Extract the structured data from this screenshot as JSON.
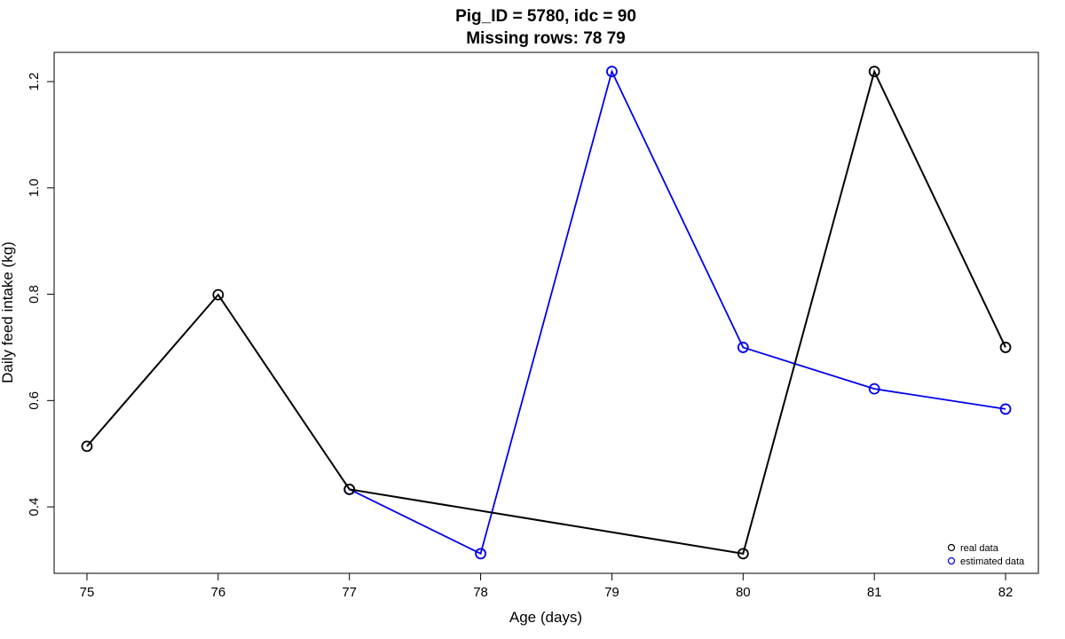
{
  "chart_data": {
    "type": "line",
    "title": "Pig_ID = 5780, idc = 90",
    "subtitle": "Missing rows: 78 79",
    "xlabel": "Age (days)",
    "ylabel": "Daily feed intake (kg)",
    "xlim": [
      74.75,
      82.25
    ],
    "ylim": [
      0.275,
      1.255
    ],
    "x": [
      75,
      76,
      77,
      78,
      79,
      80,
      81,
      82
    ],
    "xticks": [
      75,
      76,
      77,
      78,
      79,
      80,
      81,
      82
    ],
    "yticks": [
      0.4,
      0.6,
      0.8,
      1.0,
      1.2
    ],
    "ytick_labels": [
      "0.4",
      "0.6",
      "0.8",
      "1.0",
      "1.2"
    ],
    "grid": false,
    "legend_position": "bottom-right",
    "series": [
      {
        "name": "real data",
        "color": "#000000",
        "points": [
          [
            75,
            0.514
          ],
          [
            76,
            0.799
          ],
          [
            77,
            0.433
          ],
          [
            80,
            0.312
          ],
          [
            81,
            1.219
          ],
          [
            82,
            0.7
          ]
        ]
      },
      {
        "name": "estimated data",
        "color": "#0000ee",
        "points": [
          [
            77,
            0.433
          ],
          [
            78,
            0.312
          ],
          [
            79,
            1.219
          ],
          [
            80,
            0.7
          ],
          [
            81,
            0.622
          ],
          [
            82,
            0.584
          ]
        ]
      }
    ]
  }
}
